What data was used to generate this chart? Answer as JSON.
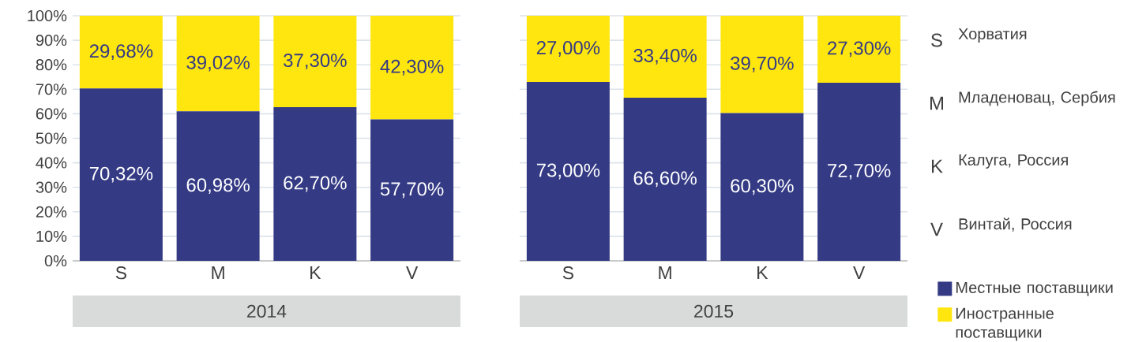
{
  "chart_data": [
    {
      "type": "bar",
      "stacked": true,
      "xlabel": "2014",
      "categories": [
        "S",
        "M",
        "K",
        "V"
      ],
      "ylim": [
        0,
        100
      ],
      "yticks": [
        {
          "value": 0,
          "label": "0%"
        },
        {
          "value": 10,
          "label": "10%"
        },
        {
          "value": 20,
          "label": "20%"
        },
        {
          "value": 30,
          "label": "30%"
        },
        {
          "value": 40,
          "label": "40%"
        },
        {
          "value": 50,
          "label": "50%"
        },
        {
          "value": 60,
          "label": "60%"
        },
        {
          "value": 70,
          "label": "70%"
        },
        {
          "value": 80,
          "label": "80%"
        },
        {
          "value": 90,
          "label": "90%"
        },
        {
          "value": 100,
          "label": "100%"
        }
      ],
      "grid": "y",
      "legend": false,
      "series": [
        {
          "color": "#343a84",
          "values": [
            70.32,
            60.98,
            62.7,
            57.7
          ],
          "value_labels": [
            "70,32%",
            "60,98%",
            "62,70%",
            "57,70%"
          ]
        },
        {
          "color": "#ffe60f",
          "values": [
            29.68,
            39.02,
            37.3,
            42.3
          ],
          "value_labels": [
            "29,68%",
            "39,02%",
            "37,30%",
            "42,30%"
          ]
        }
      ]
    },
    {
      "type": "bar",
      "stacked": true,
      "xlabel": "2015",
      "categories": [
        "S",
        "M",
        "K",
        "V"
      ],
      "ylim": [
        0,
        100
      ],
      "yticks": [
        0,
        10,
        20,
        30,
        40,
        50,
        60,
        70,
        80,
        90,
        100
      ],
      "grid": "y",
      "tick_labels": "x",
      "legend": "right",
      "annotations": [
        "S",
        "Хорватия",
        "M",
        "Младеновац, Сербия",
        "K",
        "Калуга, Россия",
        "V",
        "Винтай, Россия"
      ],
      "series": [
        {
          "name": "Местные поставщики",
          "color": "#343a84",
          "values": [
            73.0,
            66.6,
            60.3,
            72.7
          ],
          "value_labels": [
            "73,00%",
            "66,60%",
            "60,30%",
            "72,70%"
          ]
        },
        {
          "name": "Иностранные поставщики",
          "color": "#ffe60f",
          "values": [
            27.0,
            33.4,
            39.7,
            27.3
          ],
          "value_labels": [
            "27,00%",
            "33,40%",
            "39,70%",
            "27,30%"
          ]
        }
      ]
    }
  ]
}
